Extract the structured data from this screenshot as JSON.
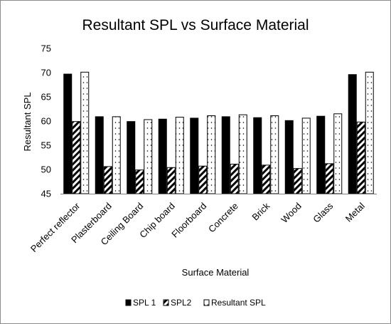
{
  "chart_data": {
    "type": "bar",
    "title": "Resultant SPL vs Surface Material",
    "xlabel": "Surface Material",
    "ylabel": "Resultant SPL",
    "ylim": [
      45,
      75
    ],
    "yticks": [
      45,
      50,
      55,
      60,
      65,
      70,
      75
    ],
    "categories": [
      "Perfect reflector",
      "Plasterboard",
      "Ceiling Board",
      "Chip board",
      "Floorboard",
      "Concrete",
      "Brick",
      "Wood",
      "Glass",
      "Metal"
    ],
    "series": [
      {
        "name": "SPL 1",
        "pattern": "solid",
        "values": [
          69.7,
          60.9,
          59.9,
          60.4,
          60.6,
          60.9,
          60.7,
          60.1,
          61.0,
          69.6
        ]
      },
      {
        "name": "SPL2",
        "pattern": "diagonal-stripes",
        "values": [
          59.9,
          50.6,
          49.9,
          50.4,
          50.7,
          51.1,
          50.9,
          50.2,
          51.2,
          59.8
        ]
      },
      {
        "name": "Resultant SPL",
        "pattern": "dotted",
        "values": [
          70.1,
          60.9,
          60.3,
          60.8,
          61.1,
          61.3,
          61.1,
          60.6,
          61.5,
          70.1
        ]
      }
    ],
    "grid": false,
    "legend": "bottom",
    "colors": {
      "bar_fill": "#000000",
      "bar_stroke": "#000000",
      "background": "#ffffff",
      "frame": "#8c8c8c"
    }
  }
}
